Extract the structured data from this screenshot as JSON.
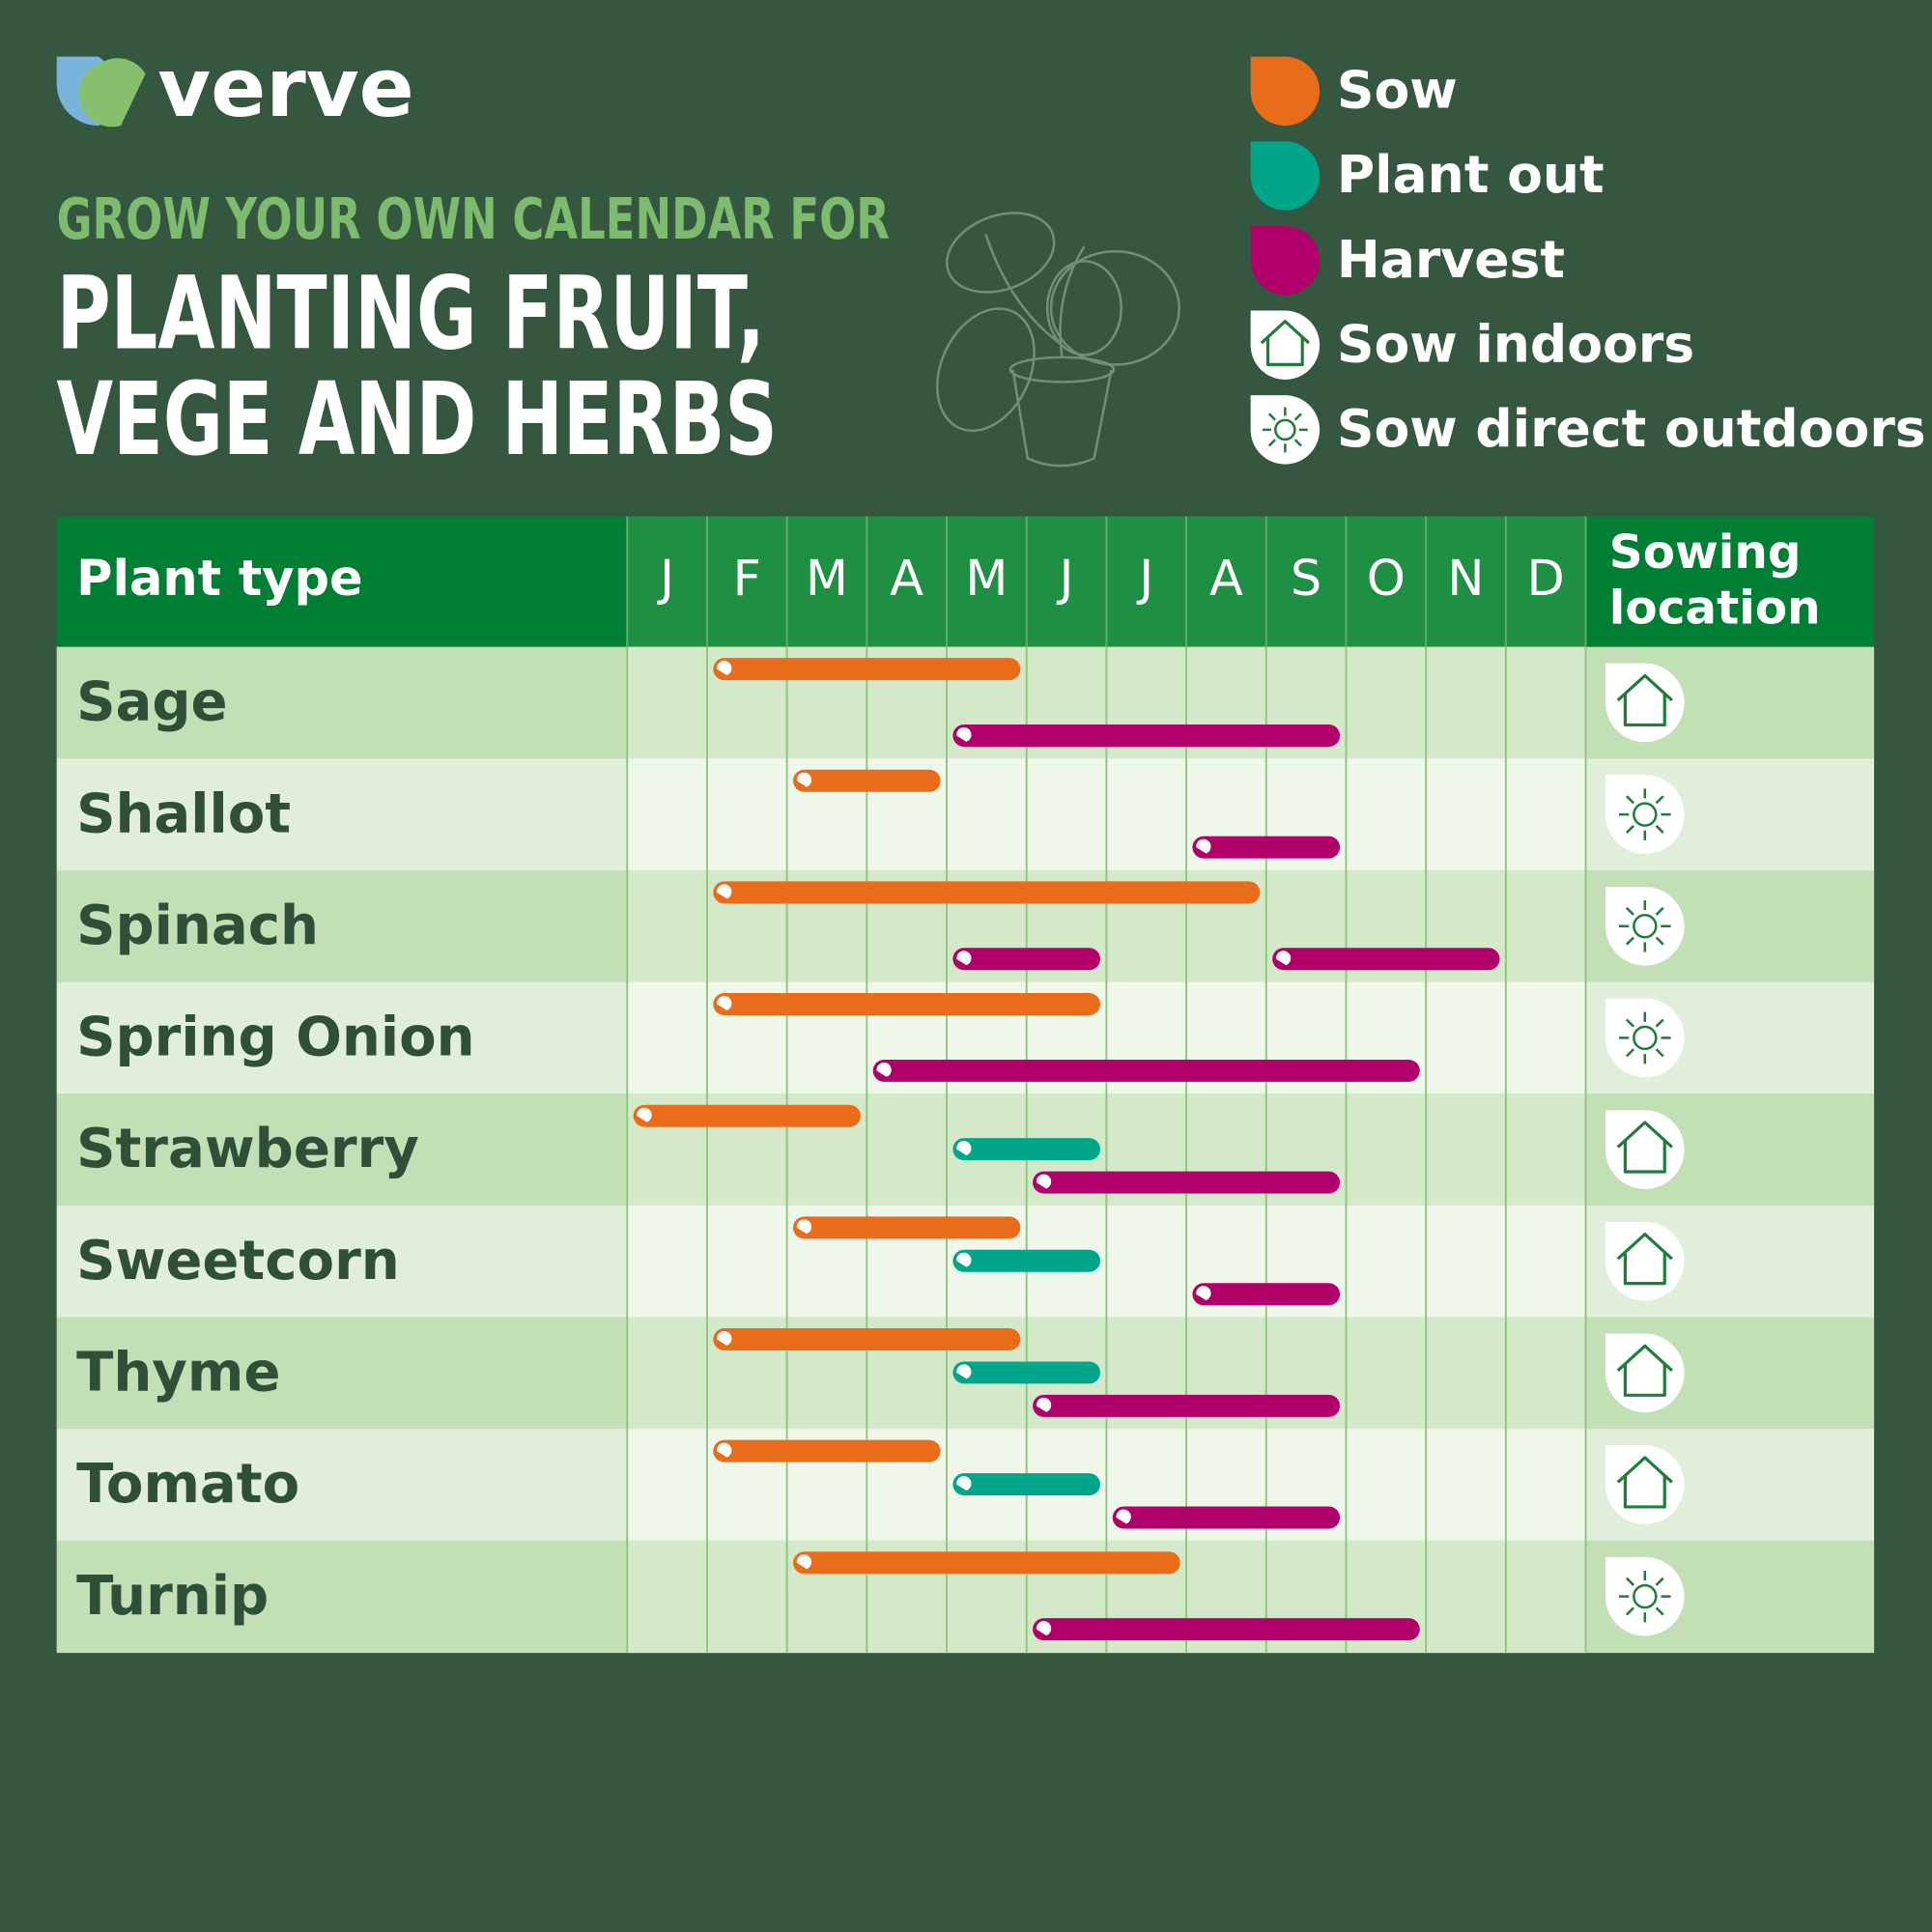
{
  "logo": "verve",
  "subtitle": "GROW YOUR OWN CALENDAR FOR",
  "title": [
    "PLANTING FRUIT,",
    "VEGE AND HERBS"
  ],
  "legend": [
    {
      "label": "Sow",
      "color": "#e86c1a"
    },
    {
      "label": "Plant out",
      "color": "#00a68a"
    },
    {
      "label": "Harvest",
      "color": "#b1006a"
    },
    {
      "label": "Sow indoors",
      "icon": "house"
    },
    {
      "label": "Sow direct outdoors",
      "icon": "sun"
    }
  ],
  "table": {
    "header": {
      "plant": "Plant type",
      "months": [
        "J",
        "F",
        "M",
        "A",
        "M",
        "J",
        "J",
        "A",
        "S",
        "O",
        "N",
        "D"
      ],
      "location": [
        "Sowing",
        "location"
      ]
    },
    "rows": [
      {
        "plant": "Sage",
        "location": 3,
        "periods": [
          {
            "stage": 0,
            "start": 2,
            "end": 5
          },
          {
            "stage": 2,
            "start": 5,
            "end": 9
          }
        ]
      },
      {
        "plant": "Shallot",
        "location": 4,
        "periods": [
          {
            "stage": 0,
            "start": 3,
            "end": 4
          },
          {
            "stage": 2,
            "start": 8,
            "end": 9
          }
        ]
      },
      {
        "plant": "Spinach",
        "location": 4,
        "periods": [
          {
            "stage": 0,
            "start": 2,
            "end": 8
          },
          {
            "stage": 2,
            "start": 5,
            "end": 6
          },
          {
            "stage": 2,
            "start": 9,
            "end": 11
          }
        ]
      },
      {
        "plant": "Spring Onion",
        "location": 4,
        "periods": [
          {
            "stage": 0,
            "start": 2,
            "end": 6
          },
          {
            "stage": 2,
            "start": 4,
            "end": 10
          }
        ]
      },
      {
        "plant": "Strawberry",
        "location": 3,
        "periods": [
          {
            "stage": 0,
            "start": 1,
            "end": 3
          },
          {
            "stage": 1,
            "start": 5,
            "end": 6
          },
          {
            "stage": 2,
            "start": 6,
            "end": 9
          }
        ]
      },
      {
        "plant": "Sweetcorn",
        "location": 3,
        "periods": [
          {
            "stage": 0,
            "start": 3,
            "end": 5
          },
          {
            "stage": 1,
            "start": 5,
            "end": 6
          },
          {
            "stage": 2,
            "start": 8,
            "end": 9
          }
        ]
      },
      {
        "plant": "Thyme",
        "location": 3,
        "periods": [
          {
            "stage": 0,
            "start": 2,
            "end": 5
          },
          {
            "stage": 1,
            "start": 5,
            "end": 6
          },
          {
            "stage": 2,
            "start": 6,
            "end": 9
          }
        ]
      },
      {
        "plant": "Tomato",
        "location": 3,
        "periods": [
          {
            "stage": 0,
            "start": 2,
            "end": 4
          },
          {
            "stage": 1,
            "start": 5,
            "end": 6
          },
          {
            "stage": 2,
            "start": 7,
            "end": 9
          }
        ]
      },
      {
        "plant": "Turnip",
        "location": 4,
        "periods": [
          {
            "stage": 0,
            "start": 3,
            "end": 7
          },
          {
            "stage": 2,
            "start": 6,
            "end": 10
          }
        ]
      }
    ]
  }
}
